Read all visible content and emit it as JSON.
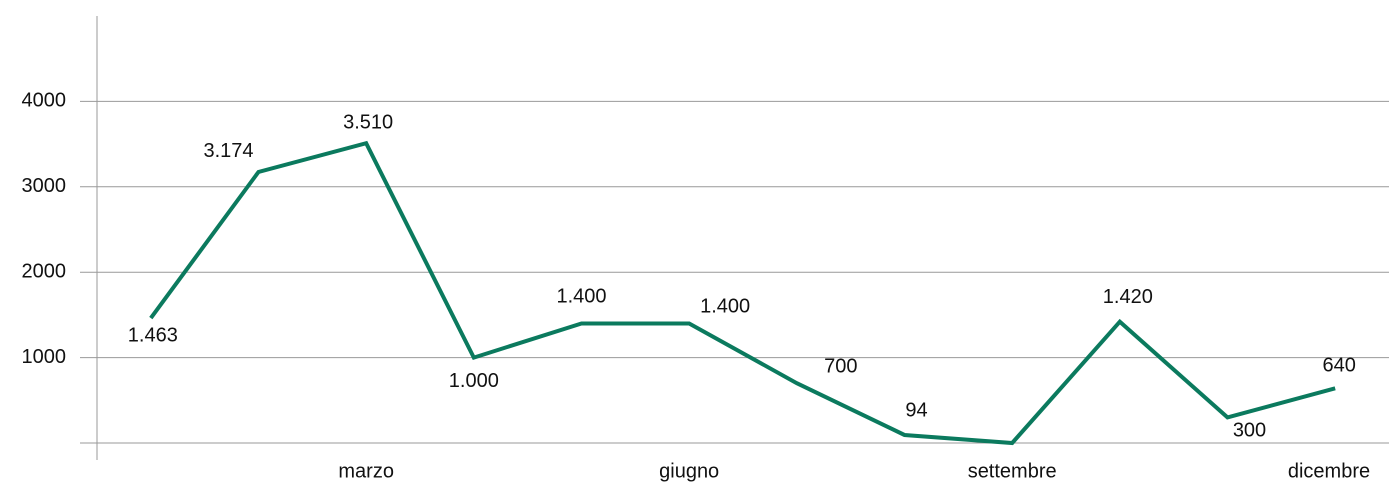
{
  "chart_data": {
    "type": "line",
    "categories": [
      null,
      null,
      "marzo",
      null,
      null,
      "giugno",
      null,
      null,
      "settembre",
      null,
      null,
      "dicembre"
    ],
    "series": [
      {
        "color": "#0b7a5e",
        "values": [
          1463,
          3174,
          3510,
          1000,
          1400,
          1400,
          700,
          94,
          0,
          1420,
          300,
          640
        ],
        "value_labels": [
          "1.463",
          "3.174",
          "3.510",
          "1.000",
          "1.400",
          "1.400",
          "700",
          "94",
          null,
          "1.420",
          "300",
          "640"
        ]
      }
    ],
    "ylim": [
      0,
      5000
    ],
    "yticks": [
      1000,
      2000,
      3000,
      4000
    ],
    "grid": true
  }
}
